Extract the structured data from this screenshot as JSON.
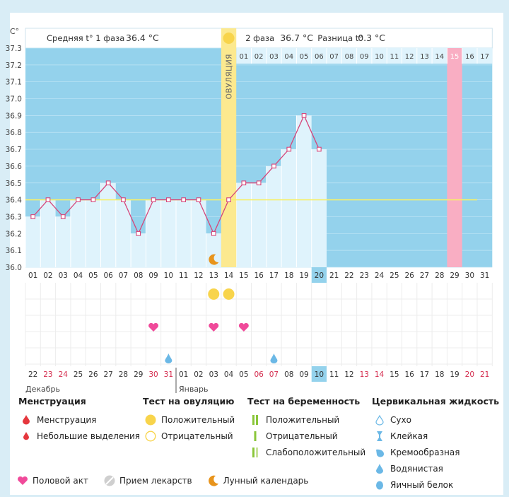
{
  "chart_data": {
    "type": "line",
    "y_axis_label": "C°",
    "ylim": [
      36.0,
      37.3
    ],
    "y_ticks": [
      "37.3",
      "37.2",
      "37.1",
      "37.0",
      "36.9",
      "36.8",
      "36.7",
      "36.6",
      "36.5",
      "36.4",
      "36.3",
      "36.2",
      "36.1",
      "36.0"
    ],
    "dates_top": [
      "01",
      "02",
      "03",
      "04",
      "05",
      "06",
      "07",
      "08",
      "09",
      "10",
      "11",
      "12",
      "13",
      "14",
      "15",
      "16",
      "17",
      "18",
      "19",
      "20",
      "21",
      "22",
      "23",
      "24",
      "25",
      "26",
      "27",
      "28",
      "29",
      "30",
      "31"
    ],
    "cycle_days": [
      "01",
      "02",
      "03",
      "04",
      "05",
      "06",
      "07",
      "08",
      "09",
      "10",
      "11",
      "12",
      "13",
      "14",
      "15",
      "16",
      "17"
    ],
    "cycle_day_highlight": "15",
    "temperatures": [
      36.3,
      36.4,
      36.3,
      36.4,
      36.4,
      36.5,
      36.4,
      36.2,
      36.4,
      36.4,
      36.4,
      36.4,
      36.2,
      36.4,
      36.5,
      36.5,
      36.6,
      36.7,
      36.9,
      36.7
    ],
    "coverline": 36.4,
    "ovulation_day_index": 13,
    "today_index": 19,
    "phase1_label": "Средняя t° 1 фаза",
    "phase1_value": "36.4 °C",
    "phase2_label": "2 фаза",
    "phase2_value": "36.7 °C",
    "difference_label": "Разница t°",
    "difference_value": "0.3 °C",
    "ovulation_label": "ОВУЛЯЦИЯ",
    "lower_dates": [
      "22",
      "23",
      "24",
      "25",
      "26",
      "27",
      "28",
      "29",
      "30",
      "31",
      "01",
      "02",
      "03",
      "04",
      "05",
      "06",
      "07",
      "08",
      "09",
      "10",
      "11",
      "12",
      "13",
      "14",
      "15",
      "16",
      "17",
      "18",
      "19",
      "20",
      "21"
    ],
    "lower_dates_red": [
      1,
      2,
      8,
      9,
      15,
      16,
      22,
      23,
      29,
      30
    ],
    "month_left": "Декабрь",
    "month_right": "Январь",
    "markers": {
      "moon": [
        12
      ],
      "ovulation_test_positive": [
        12,
        13
      ],
      "intercourse": [
        8,
        12,
        14
      ],
      "fluid_watery": [
        9,
        16
      ]
    }
  },
  "legend": {
    "menstruation": {
      "title": "Менструация",
      "items": [
        "Менструация",
        "Небольшие выделения"
      ]
    },
    "ovulation_test": {
      "title": "Тест на овуляцию",
      "items": [
        "Положительный",
        "Отрицательный"
      ]
    },
    "pregnancy_test": {
      "title": "Тест на беременность",
      "items": [
        "Положительный",
        "Отрицательный",
        "Слабоположительный"
      ]
    },
    "cervical_fluid": {
      "title": "Цервикальная жидкость",
      "items": [
        "Сухо",
        "Клейкая",
        "Кремообразная",
        "Водянистая",
        "Яичный белок"
      ]
    },
    "bottom": [
      "Половой акт",
      "Прием лекарств",
      "Лунный календарь"
    ]
  },
  "colors": {
    "blue_bg": "#94d2ec",
    "light_blue": "#dff3fc",
    "line": "#d6467a",
    "ovulation": "#fce98f",
    "yellow": "#f8d44b",
    "pink_col": "#f9aec3",
    "heart": "#f04a9a",
    "drop": "#6bb8e6",
    "red_drop": "#e5373d",
    "green": "#8ac63a",
    "orange": "#e8941c"
  }
}
